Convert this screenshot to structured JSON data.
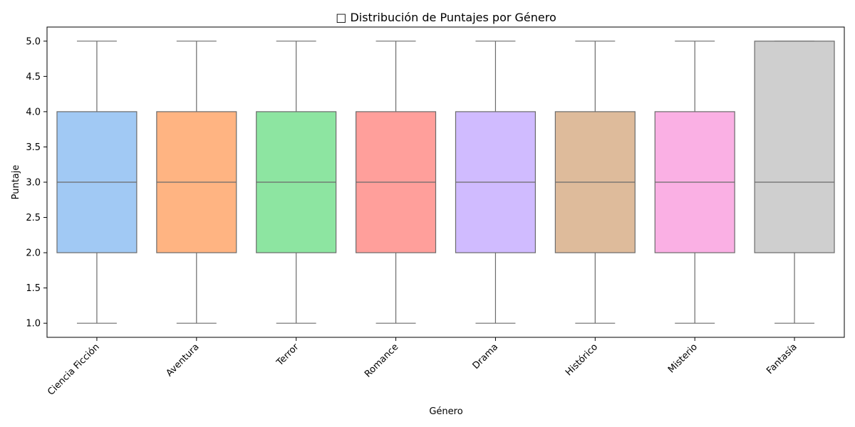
{
  "chart_data": {
    "type": "box",
    "title": "□ Distribución de Puntajes por Género",
    "xlabel": "Género",
    "ylabel": "Puntaje",
    "ylim": [
      0.8,
      5.2
    ],
    "yticks": [
      "1.0",
      "1.5",
      "2.0",
      "2.5",
      "3.0",
      "3.5",
      "4.0",
      "4.5",
      "5.0"
    ],
    "grid": false,
    "categories": [
      "Ciencia Ficción",
      "Aventura",
      "Terror",
      "Romance",
      "Drama",
      "Histórico",
      "Misterio",
      "Fantasía"
    ],
    "boxes": [
      {
        "category": "Ciencia Ficción",
        "min": 1,
        "q1": 2,
        "median": 3,
        "q3": 4,
        "max": 5,
        "color": "#a1c9f4"
      },
      {
        "category": "Aventura",
        "min": 1,
        "q1": 2,
        "median": 3,
        "q3": 4,
        "max": 5,
        "color": "#ffb482"
      },
      {
        "category": "Terror",
        "min": 1,
        "q1": 2,
        "median": 3,
        "q3": 4,
        "max": 5,
        "color": "#8de5a1"
      },
      {
        "category": "Romance",
        "min": 1,
        "q1": 2,
        "median": 3,
        "q3": 4,
        "max": 5,
        "color": "#ff9f9b"
      },
      {
        "category": "Drama",
        "min": 1,
        "q1": 2,
        "median": 3,
        "q3": 4,
        "max": 5,
        "color": "#d0bbff"
      },
      {
        "category": "Histórico",
        "min": 1,
        "q1": 2,
        "median": 3,
        "q3": 4,
        "max": 5,
        "color": "#debb9b"
      },
      {
        "category": "Misterio",
        "min": 1,
        "q1": 2,
        "median": 3,
        "q3": 4,
        "max": 5,
        "color": "#fab0e4"
      },
      {
        "category": "Fantasía",
        "min": 1,
        "q1": 2,
        "median": 3,
        "q3": 5,
        "max": 5,
        "color": "#cfcfcf"
      }
    ],
    "line_color": "#6b6b6b"
  }
}
